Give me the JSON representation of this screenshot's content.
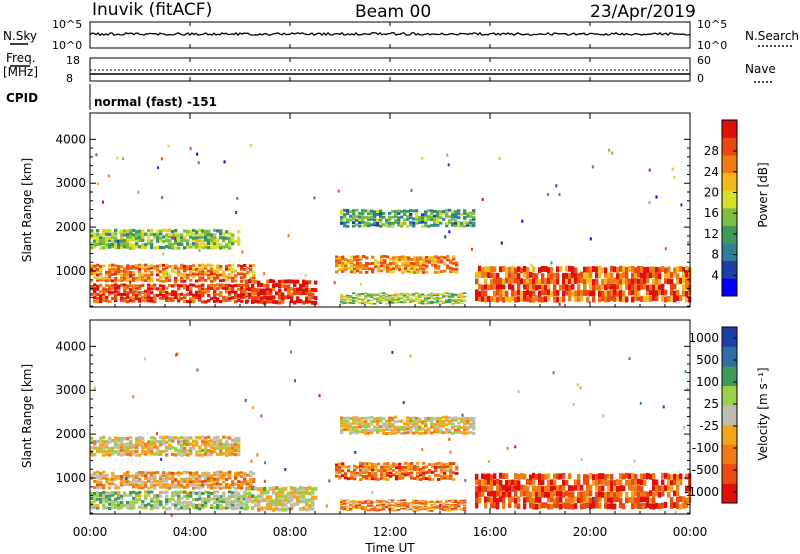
{
  "header": {
    "station": "Inuvik (fitACF)",
    "beam": "Beam 00",
    "date": "23/Apr/2019"
  },
  "strip": {
    "nsky_label": "N.Sky",
    "nsearch_label": "N.Search",
    "nsky_ticks": [
      "10^5",
      "10^0"
    ],
    "nsearch_ticks": [
      "10^5",
      "10^0"
    ],
    "freq_label": "Freq.",
    "freq_unit": "[MHz]",
    "freq_ticks": [
      "18",
      "8"
    ],
    "nave_label": "Nave",
    "nave_ticks": [
      "60",
      "0"
    ],
    "cpid_label": "CPID",
    "cpid_value": "normal (fast) -151"
  },
  "time_axis": {
    "label": "Time UT",
    "ticks": [
      "00:00",
      "04:00",
      "08:00",
      "12:00",
      "16:00",
      "20:00",
      "00:00"
    ]
  },
  "chart_data": [
    {
      "type": "heatmap",
      "quantity": "Power",
      "ylabel": "Slant Range [km]",
      "yticks": [
        1000,
        2000,
        3000,
        4000
      ],
      "ylim": [
        180,
        4600
      ],
      "xlim_hours": [
        0,
        24
      ],
      "colorbar_label": "Power [dB]",
      "colorbar_ticks": [
        "4",
        "8",
        "12",
        "16",
        "20",
        "24",
        "28"
      ],
      "colormap": [
        "#0000ff",
        "#1c3fa8",
        "#2f7f9a",
        "#3f9a5a",
        "#7bbf40",
        "#d6e02a",
        "#f3b81c",
        "#ef7b12",
        "#ea4a0f",
        "#e00f0a"
      ],
      "echo_bands": [
        {
          "t0": 0.0,
          "t1": 6.0,
          "r0": 1500,
          "r1": 1950,
          "level": 0.45
        },
        {
          "t0": 0.0,
          "t1": 6.6,
          "r0": 750,
          "r1": 1150,
          "level": 0.75
        },
        {
          "t0": 0.0,
          "t1": 6.3,
          "r0": 280,
          "r1": 700,
          "level": 0.88
        },
        {
          "t0": 6.2,
          "t1": 9.0,
          "r0": 250,
          "r1": 800,
          "level": 0.92
        },
        {
          "t0": 9.8,
          "t1": 14.6,
          "r0": 950,
          "r1": 1350,
          "level": 0.72
        },
        {
          "t0": 10.0,
          "t1": 15.3,
          "r0": 2000,
          "r1": 2400,
          "level": 0.35
        },
        {
          "t0": 10.0,
          "t1": 15.0,
          "r0": 250,
          "r1": 500,
          "level": 0.5
        },
        {
          "t0": 15.4,
          "t1": 24.0,
          "r0": 300,
          "r1": 1100,
          "level": 0.82
        }
      ]
    },
    {
      "type": "heatmap",
      "quantity": "Velocity",
      "ylabel": "Slant Range [km]",
      "yticks": [
        1000,
        2000,
        3000,
        4000
      ],
      "ylim": [
        180,
        4600
      ],
      "xlim_hours": [
        0,
        24
      ],
      "colorbar_label": "Velocity [m s⁻¹]",
      "colorbar_ticks": [
        "1000",
        "500",
        "100",
        "25",
        "-25",
        "-100",
        "-500",
        "-1000"
      ],
      "colormap": [
        "#e00f0a",
        "#ea4a0f",
        "#ef7b12",
        "#f3a51c",
        "#bdbdb0",
        "#9ad04a",
        "#3f9a5a",
        "#2f6fa8",
        "#1c3fa8"
      ],
      "echo_bands": [
        {
          "t0": 0.0,
          "t1": 6.0,
          "r0": 1500,
          "r1": 1950,
          "level": 0.45
        },
        {
          "t0": 0.0,
          "t1": 6.6,
          "r0": 750,
          "r1": 1150,
          "level": 0.35
        },
        {
          "t0": 0.0,
          "t1": 6.3,
          "r0": 280,
          "r1": 700,
          "level": 0.6
        },
        {
          "t0": 6.2,
          "t1": 9.0,
          "r0": 250,
          "r1": 800,
          "level": 0.5
        },
        {
          "t0": 9.8,
          "t1": 14.6,
          "r0": 950,
          "r1": 1350,
          "level": 0.25
        },
        {
          "t0": 10.0,
          "t1": 15.3,
          "r0": 2000,
          "r1": 2400,
          "level": 0.45
        },
        {
          "t0": 10.0,
          "t1": 15.0,
          "r0": 250,
          "r1": 500,
          "level": 0.3
        },
        {
          "t0": 15.4,
          "t1": 24.0,
          "r0": 300,
          "r1": 1100,
          "level": 0.18
        }
      ]
    }
  ]
}
